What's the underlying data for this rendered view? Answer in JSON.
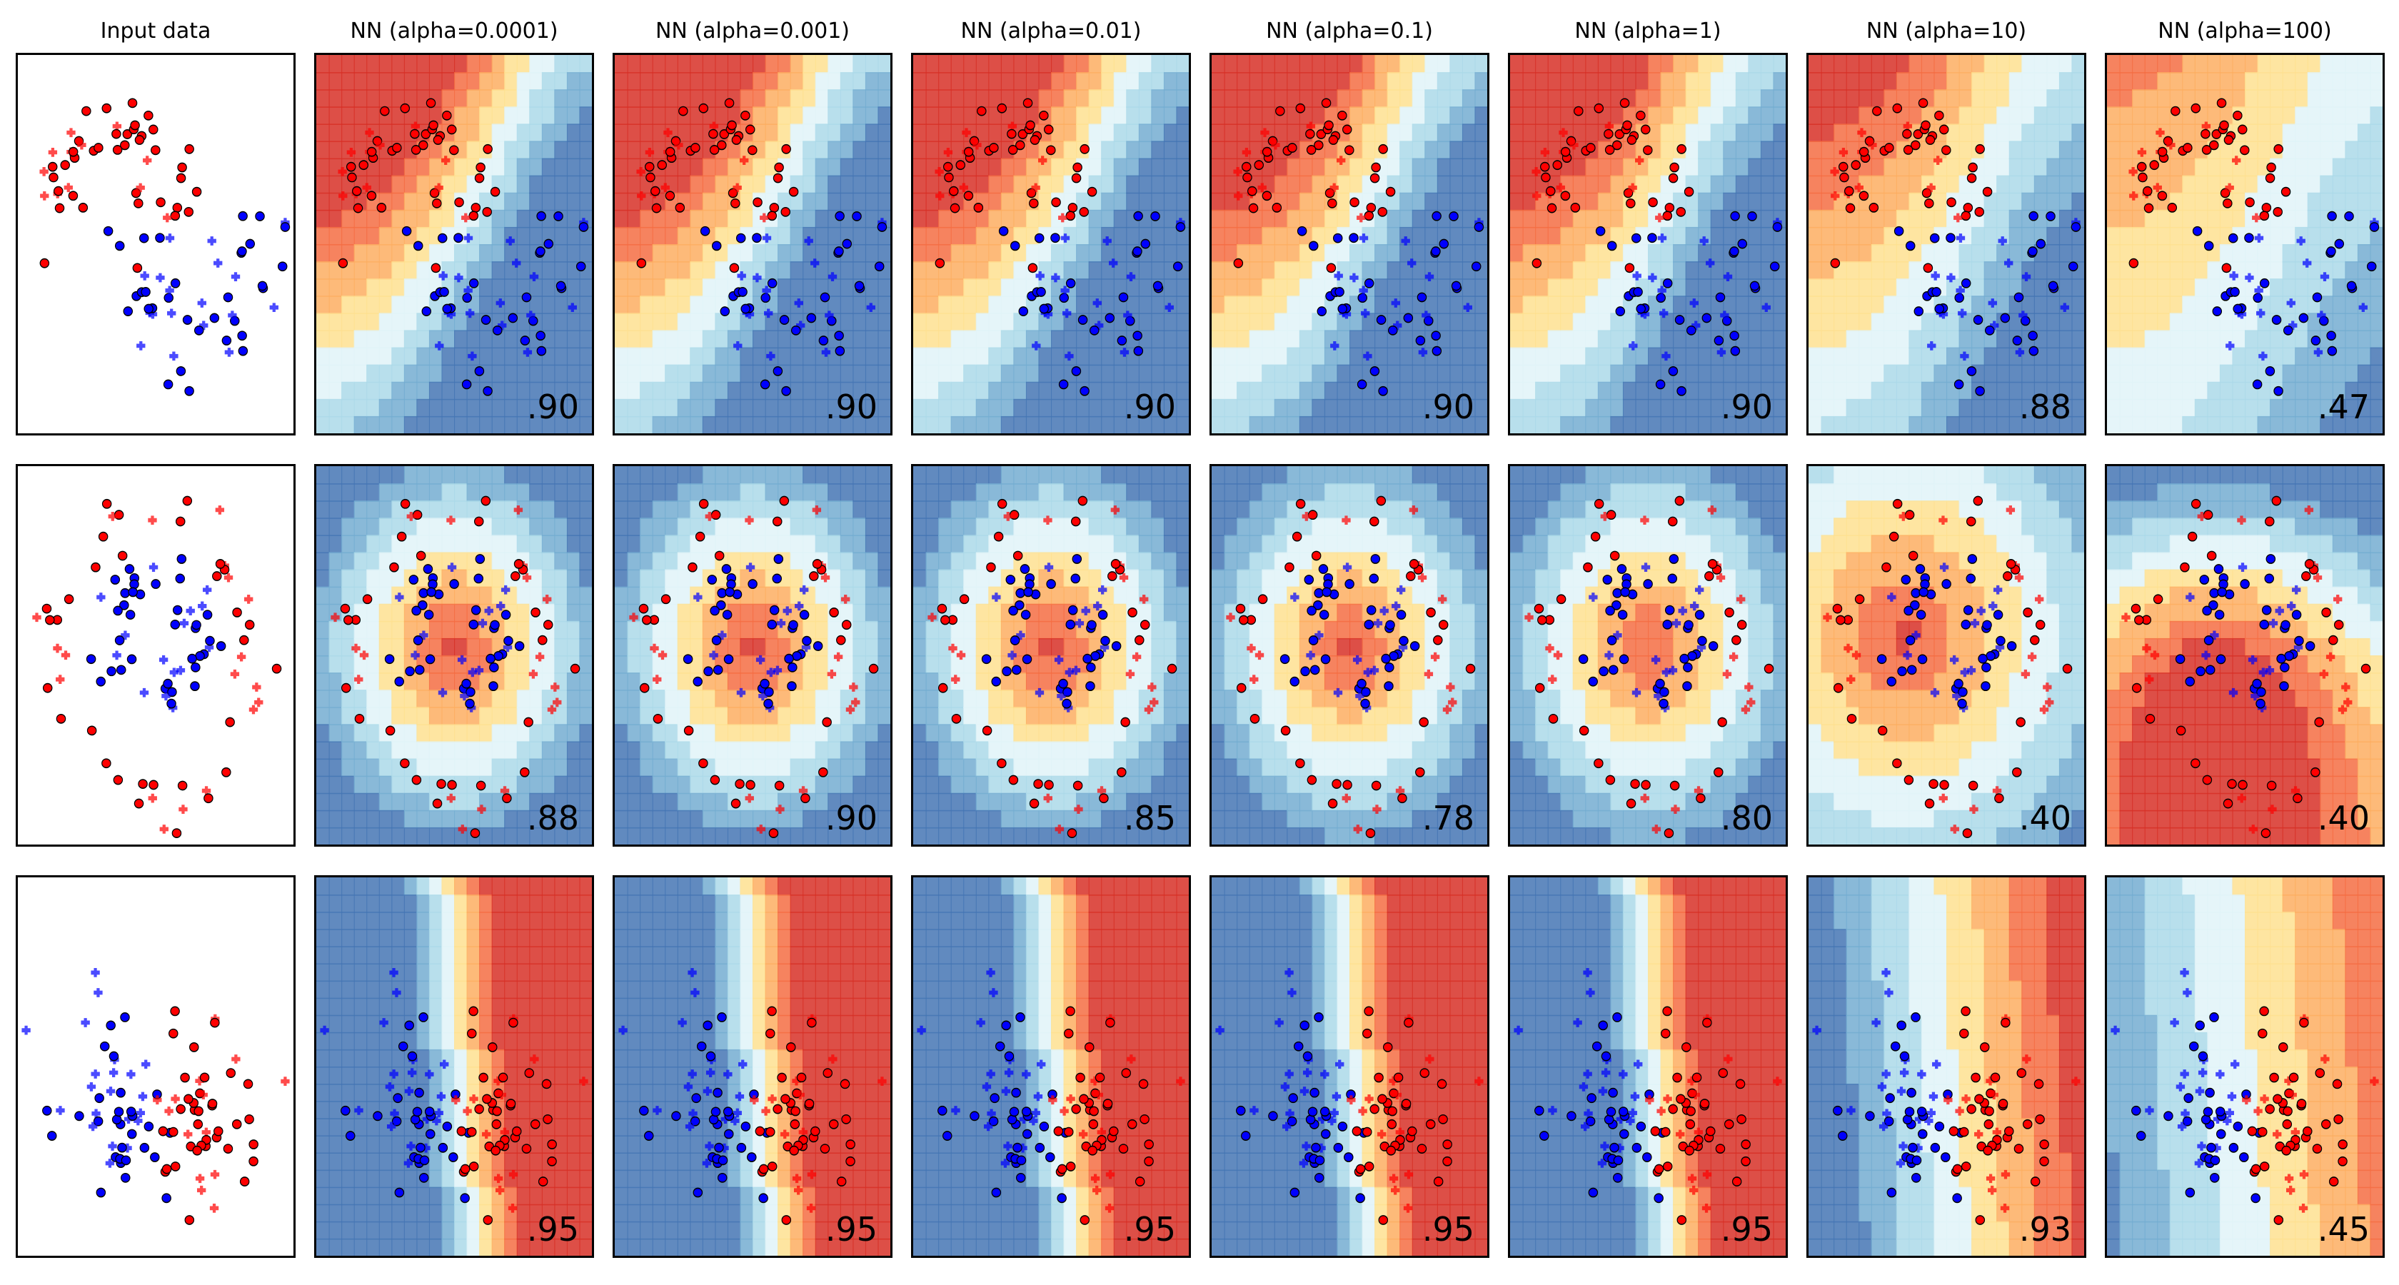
{
  "figure_title": "",
  "chart_data": {
    "type": "scatter",
    "description_of_encoding": "",
    "columns": [
      "Input data",
      "NN (alpha=0.0001)",
      "NN (alpha=0.001)",
      "NN (alpha=0.01)",
      "NN (alpha=0.1)",
      "NN (alpha=1)",
      "NN (alpha=10)",
      "NN (alpha=100)"
    ],
    "datasets": [
      "moons",
      "circles",
      "linearly_separable"
    ],
    "scores": [
      [
        ".90",
        ".90",
        ".90",
        ".90",
        ".90",
        ".88",
        ".47"
      ],
      [
        ".88",
        ".90",
        ".85",
        ".78",
        ".80",
        ".40",
        ".40"
      ],
      [
        ".95",
        ".95",
        ".95",
        ".95",
        ".95",
        ".93",
        ".45"
      ]
    ],
    "classes": [
      {
        "marker": "circle (training)",
        "color": "#ff0000"
      },
      {
        "marker": "circle (training)",
        "color": "#0000ff"
      },
      {
        "marker": "plus (test)",
        "color": "#ff0000"
      },
      {
        "marker": "plus (test)",
        "color": "#0000ff"
      }
    ],
    "colormap": [
      "#4575b4",
      "#74add1",
      "#abd9e9",
      "#e0f3f8",
      "#fee090",
      "#fdae61",
      "#f46d43",
      "#d73027"
    ],
    "grid": false,
    "axes_ticks": false
  }
}
